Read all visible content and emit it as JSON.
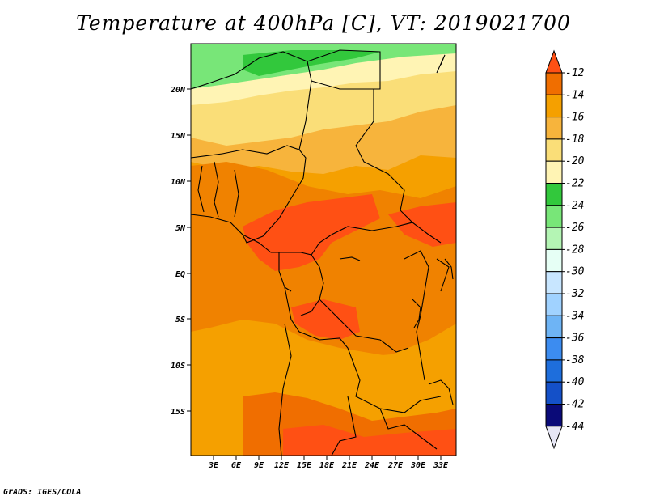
{
  "title": "Temperature at 400hPa [C], VT: 2019021700",
  "credit": "GrADS: IGES/COLA",
  "lat_labels": [
    "20N",
    "15N",
    "10N",
    "5N",
    "EQ",
    "5S",
    "10S",
    "15S"
  ],
  "lon_labels": [
    "3E",
    "6E",
    "9E",
    "12E",
    "15E",
    "18E",
    "21E",
    "24E",
    "27E",
    "30E",
    "33E"
  ],
  "colorbar": {
    "labels": [
      "-12",
      "-14",
      "-16",
      "-18",
      "-20",
      "-22",
      "-24",
      "-26",
      "-28",
      "-30",
      "-32",
      "-34",
      "-36",
      "-38",
      "-40",
      "-42",
      "-44"
    ],
    "colors": [
      "#ff5014",
      "#f06e00",
      "#f5a000",
      "#f7b43c",
      "#fade78",
      "#fff4b4",
      "#32c83c",
      "#78e678",
      "#b4f5b4",
      "#e6fff5",
      "#c8e6ff",
      "#a0d2ff",
      "#6eb4f5",
      "#3c8cf0",
      "#1e6edc",
      "#1450c8",
      "#0a0a78"
    ],
    "top_arrow_color": "#ff5014",
    "bottom_arrow_color": "#e6e6f5"
  }
}
